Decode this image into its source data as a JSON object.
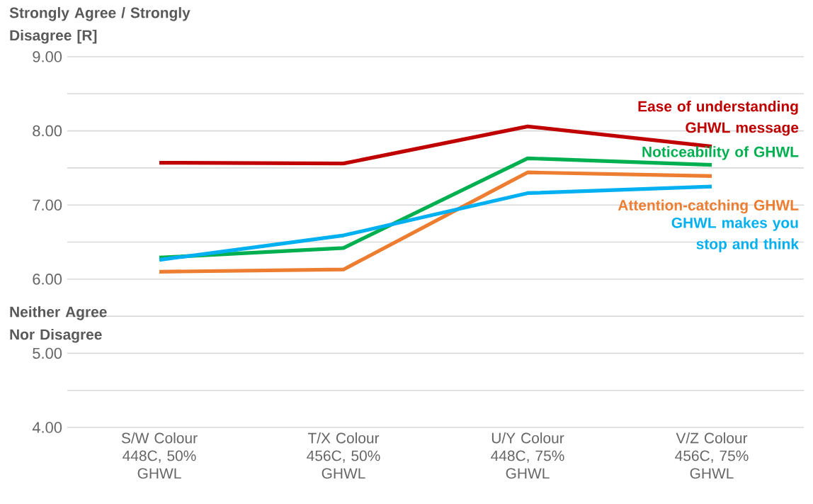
{
  "chart_data": {
    "type": "line",
    "ylabel": "Strongly Agree / Strongly Disagree [R]",
    "annotations": [
      "Neither Agree Nor Disagree"
    ],
    "categories": [
      "S/W Colour 448C, 50% GHWL",
      "T/X Colour 456C, 50% GHWL",
      "U/Y Colour 448C, 75% GHWL",
      "V/Z Colour 456C, 75% GHWL"
    ],
    "series": [
      {
        "name": "Ease of understanding GHWL message",
        "color": "#c00000",
        "values": [
          7.57,
          7.56,
          8.06,
          7.79
        ]
      },
      {
        "name": "Noticeability of GHWL",
        "color": "#00b050",
        "values": [
          6.29,
          6.42,
          7.63,
          7.54
        ]
      },
      {
        "name": "Attention-catching GHWL",
        "color": "#ed7d31",
        "values": [
          6.1,
          6.13,
          7.44,
          7.39
        ]
      },
      {
        "name": "GHWL makes you stop and think",
        "color": "#00b0f0",
        "values": [
          6.26,
          6.59,
          7.16,
          7.25
        ]
      }
    ],
    "ylim": [
      4,
      9
    ],
    "yticks": [
      {
        "value": 4,
        "label": "4.00"
      },
      {
        "value": 4.5,
        "label": null
      },
      {
        "value": 5,
        "label": "5.00"
      },
      {
        "value": 5.5,
        "label": null
      },
      {
        "value": 6,
        "label": "6.00"
      },
      {
        "value": 6.5,
        "label": null
      },
      {
        "value": 7,
        "label": "7.00"
      },
      {
        "value": 7.5,
        "label": null
      },
      {
        "value": 8,
        "label": "8.00"
      },
      {
        "value": 8.5,
        "label": null
      },
      {
        "value": 9,
        "label": "9.00"
      }
    ],
    "grid": "y",
    "marker": "none",
    "line_style": "solid"
  }
}
